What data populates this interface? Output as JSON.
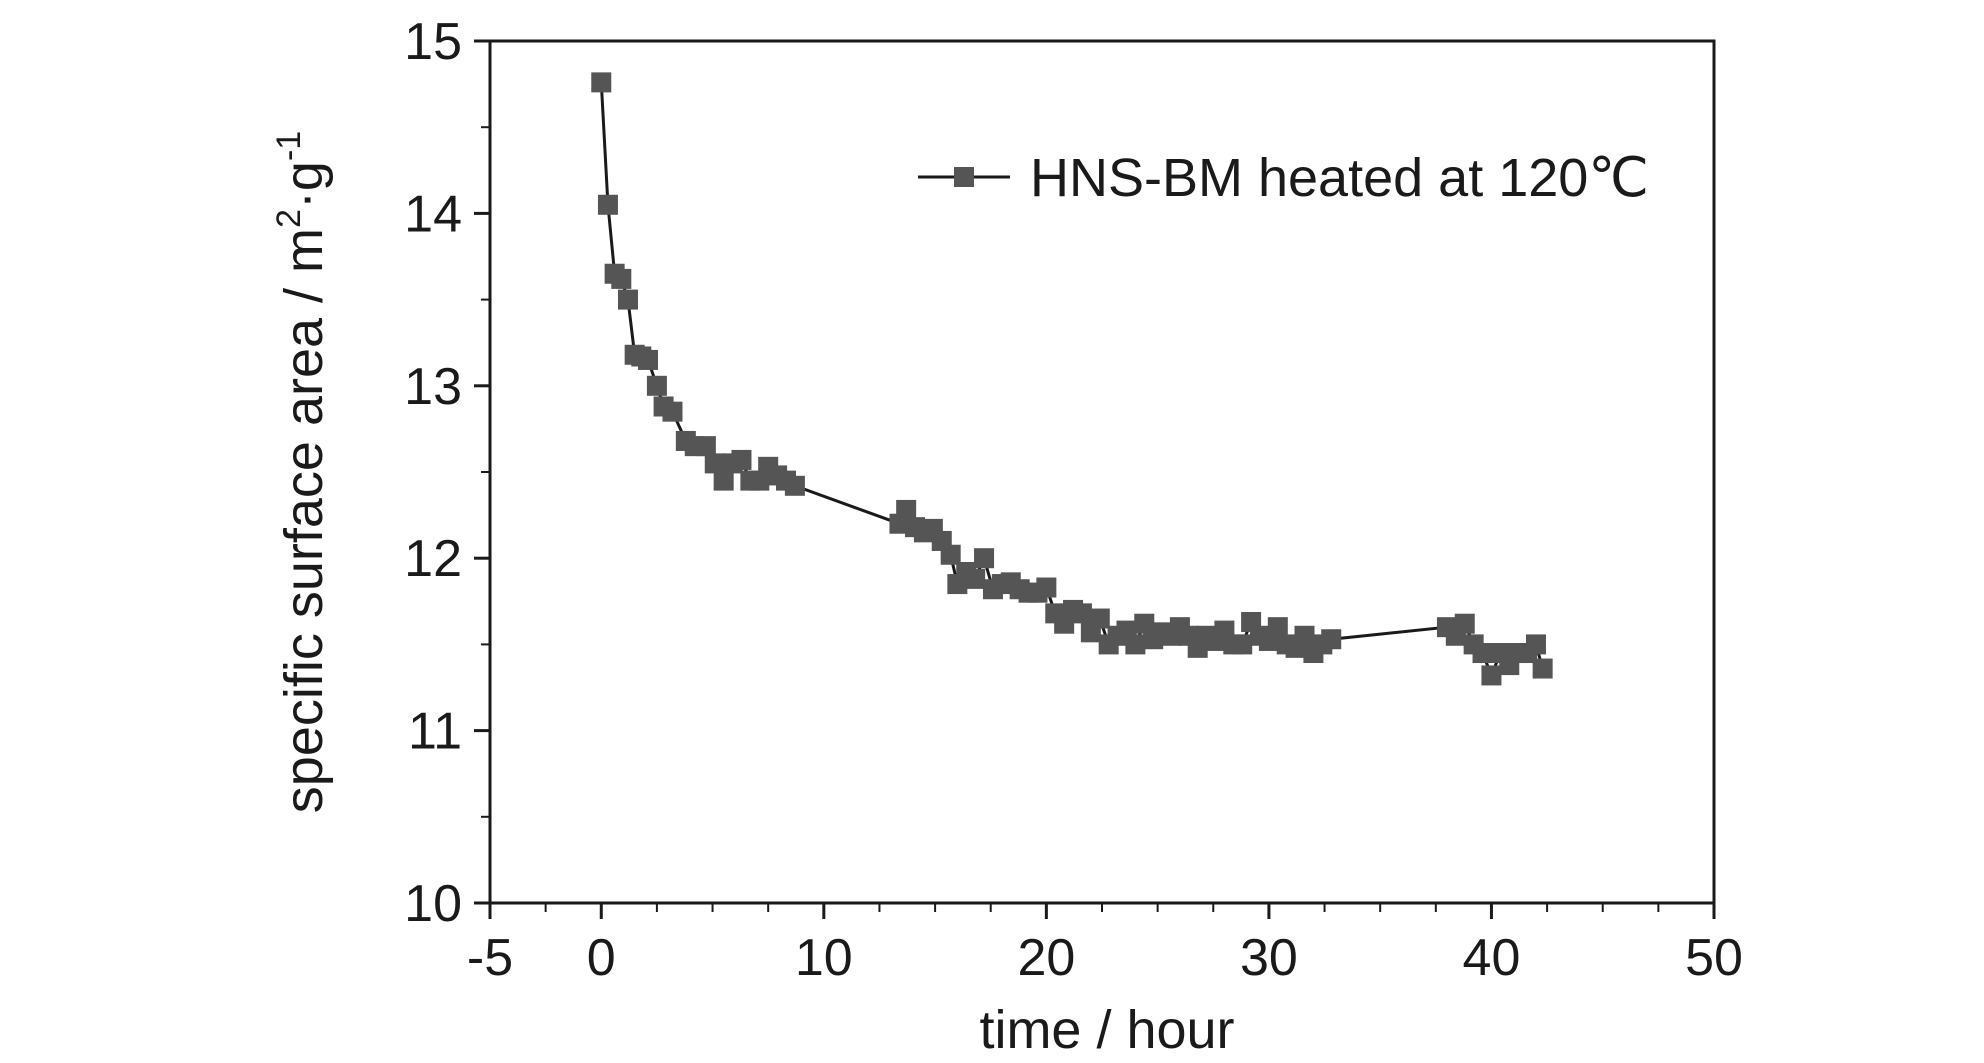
{
  "chart_data": {
    "type": "scatter",
    "title": "",
    "xlabel": "time / hour",
    "ylabel": "specific surface area / m",
    "ylabel_unit_sup1": "2",
    "ylabel_unit_mid": "·g",
    "ylabel_unit_sup2": "-1",
    "xlim": [
      -5,
      50
    ],
    "ylim": [
      10,
      15
    ],
    "x_ticks": [
      -5,
      0,
      10,
      20,
      30,
      40,
      50
    ],
    "x_tick_labels": [
      "-5",
      "0",
      "10",
      "20",
      "30",
      "40",
      "50"
    ],
    "y_ticks": [
      10,
      11,
      12,
      13,
      14,
      15
    ],
    "y_tick_labels": [
      "10",
      "11",
      "12",
      "13",
      "14",
      "15"
    ],
    "grid": false,
    "legend": "top-right",
    "series": [
      {
        "name": "HNS-BM heated at 120℃",
        "color": "#555555",
        "marker": "square",
        "line": true,
        "points": [
          [
            0.0,
            14.76
          ],
          [
            0.3,
            14.05
          ],
          [
            0.6,
            13.65
          ],
          [
            0.9,
            13.62
          ],
          [
            1.2,
            13.5
          ],
          [
            1.5,
            13.18
          ],
          [
            1.8,
            13.17
          ],
          [
            2.1,
            13.15
          ],
          [
            2.5,
            13.0
          ],
          [
            2.8,
            12.88
          ],
          [
            3.2,
            12.85
          ],
          [
            3.8,
            12.68
          ],
          [
            4.2,
            12.65
          ],
          [
            4.7,
            12.65
          ],
          [
            5.1,
            12.55
          ],
          [
            5.5,
            12.45
          ],
          [
            5.9,
            12.55
          ],
          [
            6.3,
            12.57
          ],
          [
            6.7,
            12.45
          ],
          [
            7.1,
            12.45
          ],
          [
            7.5,
            12.53
          ],
          [
            7.9,
            12.48
          ],
          [
            8.3,
            12.45
          ],
          [
            8.7,
            12.42
          ],
          [
            13.4,
            12.2
          ],
          [
            13.7,
            12.28
          ],
          [
            14.1,
            12.18
          ],
          [
            14.5,
            12.15
          ],
          [
            14.9,
            12.17
          ],
          [
            15.3,
            12.1
          ],
          [
            15.7,
            12.02
          ],
          [
            16.0,
            11.85
          ],
          [
            16.4,
            11.92
          ],
          [
            16.8,
            11.88
          ],
          [
            17.2,
            12.0
          ],
          [
            17.6,
            11.82
          ],
          [
            18.0,
            11.85
          ],
          [
            18.4,
            11.86
          ],
          [
            18.8,
            11.82
          ],
          [
            19.2,
            11.8
          ],
          [
            19.6,
            11.8
          ],
          [
            20.0,
            11.83
          ],
          [
            20.4,
            11.68
          ],
          [
            20.8,
            11.62
          ],
          [
            21.2,
            11.7
          ],
          [
            21.6,
            11.68
          ],
          [
            22.0,
            11.57
          ],
          [
            22.4,
            11.65
          ],
          [
            22.8,
            11.5
          ],
          [
            23.2,
            11.55
          ],
          [
            23.6,
            11.58
          ],
          [
            24.0,
            11.5
          ],
          [
            24.4,
            11.62
          ],
          [
            24.8,
            11.53
          ],
          [
            25.2,
            11.57
          ],
          [
            25.6,
            11.55
          ],
          [
            26.0,
            11.6
          ],
          [
            26.4,
            11.55
          ],
          [
            26.8,
            11.48
          ],
          [
            27.2,
            11.55
          ],
          [
            27.6,
            11.52
          ],
          [
            28.0,
            11.58
          ],
          [
            28.4,
            11.5
          ],
          [
            28.8,
            11.5
          ],
          [
            29.2,
            11.63
          ],
          [
            29.6,
            11.55
          ],
          [
            30.0,
            11.52
          ],
          [
            30.4,
            11.6
          ],
          [
            30.8,
            11.5
          ],
          [
            31.2,
            11.48
          ],
          [
            31.6,
            11.55
          ],
          [
            32.0,
            11.45
          ],
          [
            32.4,
            11.5
          ],
          [
            32.8,
            11.53
          ],
          [
            38.0,
            11.6
          ],
          [
            38.4,
            11.55
          ],
          [
            38.8,
            11.62
          ],
          [
            39.2,
            11.5
          ],
          [
            39.6,
            11.45
          ],
          [
            40.0,
            11.32
          ],
          [
            40.4,
            11.45
          ],
          [
            40.8,
            11.38
          ],
          [
            41.2,
            11.45
          ],
          [
            41.6,
            11.45
          ],
          [
            42.0,
            11.5
          ],
          [
            42.3,
            11.36
          ]
        ]
      }
    ]
  }
}
